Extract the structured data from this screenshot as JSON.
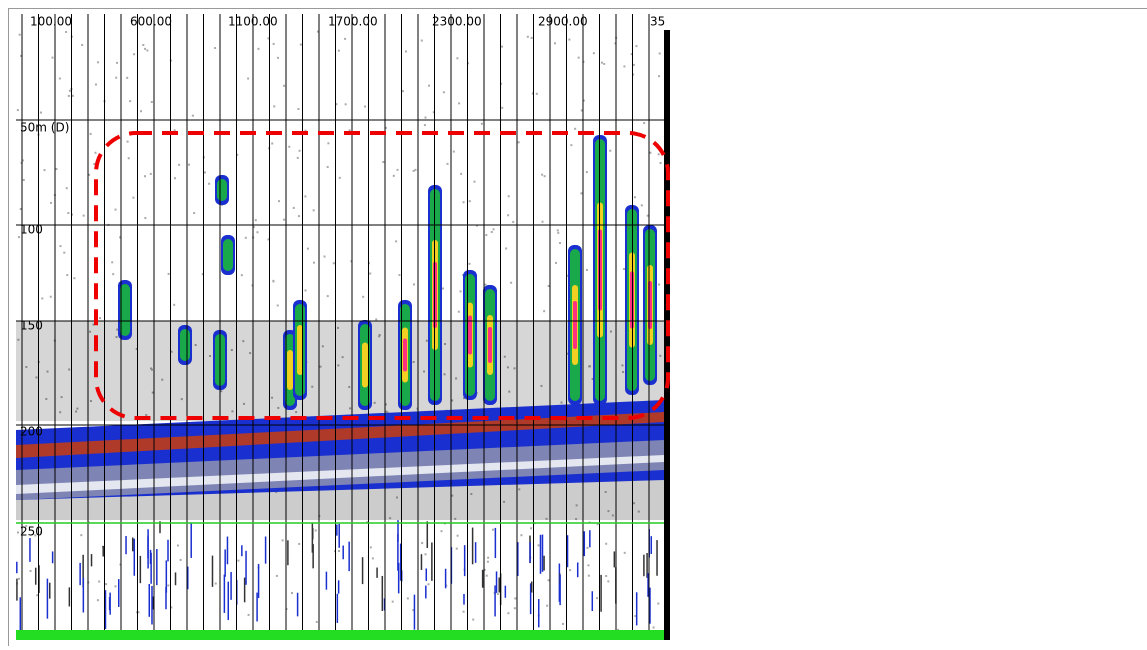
{
  "top_labels": [
    "100.00",
    "600.00",
    "1100.00",
    "1700.00",
    "2300.00",
    "2900.00",
    "35"
  ],
  "depth_labels": [
    "50m (D)",
    "100",
    "150",
    "200",
    "250"
  ]
}
